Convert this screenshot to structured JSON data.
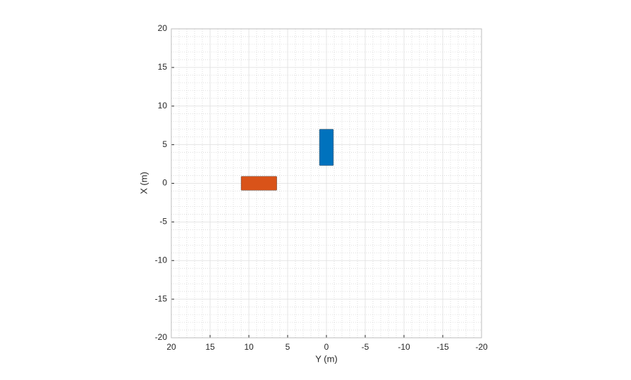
{
  "chart_data": {
    "type": "rect",
    "xlabel": "Y (m)",
    "ylabel": "X (m)",
    "xlim": [
      20,
      -20
    ],
    "ylim": [
      -20,
      20
    ],
    "xticks": [
      20,
      15,
      10,
      5,
      0,
      -5,
      -10,
      -15,
      -20
    ],
    "yticks": [
      -20,
      -15,
      -10,
      -5,
      0,
      5,
      10,
      15,
      20
    ],
    "grid": true,
    "minor_grid": true,
    "shapes": [
      {
        "color": "#0072bd",
        "ybounds": [
          2.3,
          7.0
        ],
        "xbounds": [
          0.9,
          -0.9
        ]
      },
      {
        "color": "#d95319",
        "ybounds": [
          -0.9,
          0.9
        ],
        "xbounds": [
          11.0,
          6.4
        ]
      }
    ]
  }
}
